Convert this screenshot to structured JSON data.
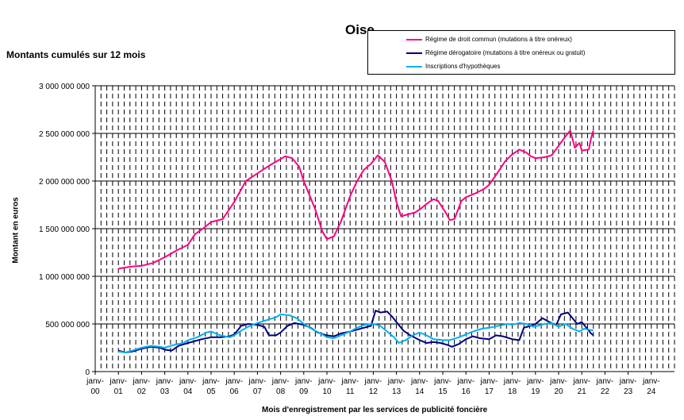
{
  "chart_data": {
    "type": "line",
    "title": "Oise",
    "subtitle": "Montants cumulés sur 12 mois",
    "xlabel": "Mois d'enregistrement par les services de publicité foncière",
    "ylabel": "Montant en euros",
    "ylim": [
      0,
      3000000000
    ],
    "y_ticks": [
      0,
      500000000,
      1000000000,
      1500000000,
      2000000000,
      2500000000,
      3000000000
    ],
    "y_tick_labels": [
      "0",
      "500 000 000",
      "1 000 000 000",
      "1 500 000 000",
      "2 000 000 000",
      "2 500 000 000",
      "3 000 000 000"
    ],
    "x_tick_labels": [
      [
        "janv-",
        "00"
      ],
      [
        "janv-",
        "01"
      ],
      [
        "janv-",
        "02"
      ],
      [
        "janv-",
        "03"
      ],
      [
        "janv-",
        "04"
      ],
      [
        "janv-",
        "05"
      ],
      [
        "janv-",
        "06"
      ],
      [
        "janv-",
        "07"
      ],
      [
        "janv-",
        "08"
      ],
      [
        "janv-",
        "09"
      ],
      [
        "janv-",
        "10"
      ],
      [
        "janv-",
        "11"
      ],
      [
        "janv-",
        "12"
      ],
      [
        "janv-",
        "13"
      ],
      [
        "janv-",
        "14"
      ],
      [
        "janv-",
        "15"
      ],
      [
        "janv-",
        "16"
      ],
      [
        "janv-",
        "17"
      ],
      [
        "janv-",
        "18"
      ],
      [
        "janv-",
        "19"
      ],
      [
        "janv-",
        "20"
      ],
      [
        "janv-",
        "21"
      ],
      [
        "janv-",
        "22"
      ],
      [
        "janv-",
        "23"
      ],
      [
        "janv-",
        "24"
      ]
    ],
    "x_range_years": [
      2000,
      2025
    ],
    "grid": "horizontal solid, vertical dashed",
    "legend_position": "top-right",
    "series": [
      {
        "name": "Régime de droit commun (mutations à titre onéreux)",
        "color": "#ff0080",
        "points": [
          [
            2001.0,
            1080000000
          ],
          [
            2001.5,
            1100000000
          ],
          [
            2002.0,
            1110000000
          ],
          [
            2002.5,
            1140000000
          ],
          [
            2003.0,
            1200000000
          ],
          [
            2003.5,
            1270000000
          ],
          [
            2004.0,
            1330000000
          ],
          [
            2004.3,
            1440000000
          ],
          [
            2004.7,
            1510000000
          ],
          [
            2005.0,
            1570000000
          ],
          [
            2005.5,
            1600000000
          ],
          [
            2006.0,
            1780000000
          ],
          [
            2006.5,
            2000000000
          ],
          [
            2007.0,
            2080000000
          ],
          [
            2007.5,
            2160000000
          ],
          [
            2008.0,
            2230000000
          ],
          [
            2008.2,
            2260000000
          ],
          [
            2008.5,
            2240000000
          ],
          [
            2008.8,
            2150000000
          ],
          [
            2009.0,
            2000000000
          ],
          [
            2009.5,
            1700000000
          ],
          [
            2009.8,
            1470000000
          ],
          [
            2010.0,
            1390000000
          ],
          [
            2010.3,
            1420000000
          ],
          [
            2010.6,
            1570000000
          ],
          [
            2011.0,
            1840000000
          ],
          [
            2011.3,
            2000000000
          ],
          [
            2011.6,
            2120000000
          ],
          [
            2011.9,
            2180000000
          ],
          [
            2012.2,
            2270000000
          ],
          [
            2012.5,
            2200000000
          ],
          [
            2012.8,
            2000000000
          ],
          [
            2013.0,
            1780000000
          ],
          [
            2013.2,
            1630000000
          ],
          [
            2013.5,
            1650000000
          ],
          [
            2013.8,
            1670000000
          ],
          [
            2014.0,
            1700000000
          ],
          [
            2014.3,
            1760000000
          ],
          [
            2014.6,
            1810000000
          ],
          [
            2014.8,
            1790000000
          ],
          [
            2015.1,
            1680000000
          ],
          [
            2015.3,
            1590000000
          ],
          [
            2015.5,
            1600000000
          ],
          [
            2015.6,
            1660000000
          ],
          [
            2015.8,
            1790000000
          ],
          [
            2016.0,
            1830000000
          ],
          [
            2016.4,
            1870000000
          ],
          [
            2016.8,
            1920000000
          ],
          [
            2017.0,
            1960000000
          ],
          [
            2017.4,
            2100000000
          ],
          [
            2017.7,
            2210000000
          ],
          [
            2018.0,
            2280000000
          ],
          [
            2018.3,
            2330000000
          ],
          [
            2018.6,
            2300000000
          ],
          [
            2018.8,
            2260000000
          ],
          [
            2019.0,
            2240000000
          ],
          [
            2019.4,
            2250000000
          ],
          [
            2019.7,
            2270000000
          ],
          [
            2020.0,
            2370000000
          ],
          [
            2020.3,
            2470000000
          ],
          [
            2020.5,
            2530000000
          ],
          [
            2020.7,
            2350000000
          ],
          [
            2020.9,
            2400000000
          ],
          [
            2021.0,
            2320000000
          ],
          [
            2021.3,
            2330000000
          ],
          [
            2021.4,
            2450000000
          ],
          [
            2021.5,
            2530000000
          ]
        ]
      },
      {
        "name": "Régime dérogatoire (mutations à titre onéreux ou gratuit)",
        "color": "#000080",
        "points": [
          [
            2001.0,
            220000000
          ],
          [
            2001.3,
            200000000
          ],
          [
            2001.6,
            210000000
          ],
          [
            2002.0,
            240000000
          ],
          [
            2002.4,
            260000000
          ],
          [
            2002.8,
            250000000
          ],
          [
            2003.0,
            230000000
          ],
          [
            2003.3,
            220000000
          ],
          [
            2003.6,
            270000000
          ],
          [
            2004.0,
            300000000
          ],
          [
            2004.3,
            320000000
          ],
          [
            2004.6,
            340000000
          ],
          [
            2005.0,
            360000000
          ],
          [
            2005.4,
            360000000
          ],
          [
            2005.8,
            370000000
          ],
          [
            2006.0,
            390000000
          ],
          [
            2006.3,
            480000000
          ],
          [
            2006.6,
            500000000
          ],
          [
            2007.0,
            490000000
          ],
          [
            2007.3,
            470000000
          ],
          [
            2007.5,
            380000000
          ],
          [
            2007.8,
            380000000
          ],
          [
            2008.0,
            410000000
          ],
          [
            2008.3,
            480000000
          ],
          [
            2008.6,
            510000000
          ],
          [
            2009.0,
            490000000
          ],
          [
            2009.3,
            460000000
          ],
          [
            2009.6,
            410000000
          ],
          [
            2010.0,
            380000000
          ],
          [
            2010.3,
            370000000
          ],
          [
            2010.6,
            400000000
          ],
          [
            2011.0,
            420000000
          ],
          [
            2011.3,
            440000000
          ],
          [
            2011.6,
            460000000
          ],
          [
            2011.9,
            480000000
          ],
          [
            2012.1,
            640000000
          ],
          [
            2012.3,
            620000000
          ],
          [
            2012.6,
            630000000
          ],
          [
            2012.8,
            580000000
          ],
          [
            2013.0,
            520000000
          ],
          [
            2013.3,
            430000000
          ],
          [
            2013.6,
            380000000
          ],
          [
            2014.0,
            330000000
          ],
          [
            2014.3,
            300000000
          ],
          [
            2014.6,
            310000000
          ],
          [
            2014.9,
            300000000
          ],
          [
            2015.2,
            280000000
          ],
          [
            2015.4,
            260000000
          ],
          [
            2015.7,
            290000000
          ],
          [
            2016.0,
            340000000
          ],
          [
            2016.3,
            370000000
          ],
          [
            2016.6,
            350000000
          ],
          [
            2017.0,
            340000000
          ],
          [
            2017.3,
            380000000
          ],
          [
            2017.6,
            370000000
          ],
          [
            2018.0,
            340000000
          ],
          [
            2018.3,
            330000000
          ],
          [
            2018.5,
            460000000
          ],
          [
            2018.8,
            480000000
          ],
          [
            2019.0,
            500000000
          ],
          [
            2019.3,
            560000000
          ],
          [
            2019.6,
            520000000
          ],
          [
            2019.9,
            490000000
          ],
          [
            2020.1,
            600000000
          ],
          [
            2020.4,
            620000000
          ],
          [
            2020.6,
            560000000
          ],
          [
            2020.8,
            500000000
          ],
          [
            2021.0,
            520000000
          ],
          [
            2021.2,
            460000000
          ],
          [
            2021.4,
            400000000
          ],
          [
            2021.5,
            380000000
          ]
        ]
      },
      {
        "name": "Inscriptions d'hypothèques",
        "color": "#00b0f0",
        "points": [
          [
            2001.0,
            210000000
          ],
          [
            2001.3,
            200000000
          ],
          [
            2001.6,
            220000000
          ],
          [
            2002.0,
            250000000
          ],
          [
            2002.4,
            270000000
          ],
          [
            2002.8,
            260000000
          ],
          [
            2003.0,
            250000000
          ],
          [
            2003.4,
            280000000
          ],
          [
            2003.8,
            300000000
          ],
          [
            2004.0,
            330000000
          ],
          [
            2004.4,
            360000000
          ],
          [
            2004.8,
            410000000
          ],
          [
            2005.0,
            420000000
          ],
          [
            2005.4,
            380000000
          ],
          [
            2005.8,
            360000000
          ],
          [
            2006.0,
            380000000
          ],
          [
            2006.3,
            430000000
          ],
          [
            2006.6,
            470000000
          ],
          [
            2007.0,
            510000000
          ],
          [
            2007.4,
            540000000
          ],
          [
            2007.8,
            570000000
          ],
          [
            2008.0,
            600000000
          ],
          [
            2008.4,
            590000000
          ],
          [
            2008.7,
            560000000
          ],
          [
            2009.0,
            500000000
          ],
          [
            2009.4,
            440000000
          ],
          [
            2009.8,
            390000000
          ],
          [
            2010.0,
            360000000
          ],
          [
            2010.3,
            350000000
          ],
          [
            2010.6,
            380000000
          ],
          [
            2011.0,
            420000000
          ],
          [
            2011.3,
            460000000
          ],
          [
            2011.6,
            490000000
          ],
          [
            2012.0,
            500000000
          ],
          [
            2012.3,
            480000000
          ],
          [
            2012.6,
            420000000
          ],
          [
            2012.9,
            360000000
          ],
          [
            2013.1,
            300000000
          ],
          [
            2013.4,
            330000000
          ],
          [
            2013.7,
            380000000
          ],
          [
            2014.0,
            410000000
          ],
          [
            2014.3,
            380000000
          ],
          [
            2014.6,
            340000000
          ],
          [
            2015.0,
            330000000
          ],
          [
            2015.3,
            330000000
          ],
          [
            2015.7,
            360000000
          ],
          [
            2016.0,
            390000000
          ],
          [
            2016.3,
            420000000
          ],
          [
            2016.7,
            450000000
          ],
          [
            2017.0,
            460000000
          ],
          [
            2017.4,
            480000000
          ],
          [
            2017.8,
            500000000
          ],
          [
            2018.0,
            490000000
          ],
          [
            2018.3,
            510000000
          ],
          [
            2018.6,
            500000000
          ],
          [
            2018.9,
            470000000
          ],
          [
            2019.1,
            480000000
          ],
          [
            2019.4,
            500000000
          ],
          [
            2019.7,
            510000000
          ],
          [
            2020.0,
            470000000
          ],
          [
            2020.3,
            500000000
          ],
          [
            2020.6,
            450000000
          ],
          [
            2020.9,
            420000000
          ],
          [
            2021.1,
            450000000
          ],
          [
            2021.3,
            440000000
          ],
          [
            2021.5,
            430000000
          ]
        ]
      }
    ]
  }
}
